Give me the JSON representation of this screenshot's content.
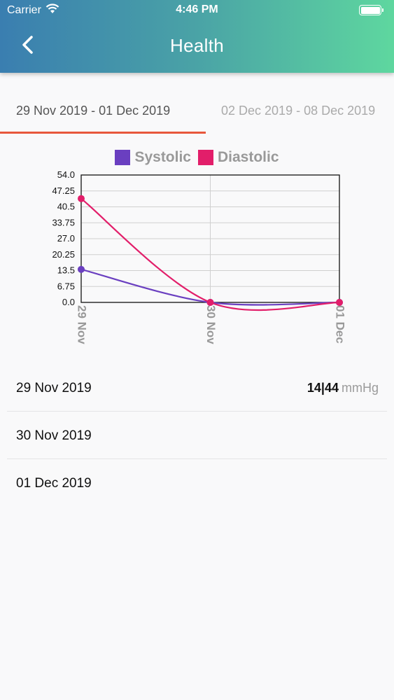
{
  "status_bar": {
    "carrier": "Carrier",
    "time": "4:46 PM"
  },
  "header": {
    "title": "Health",
    "back_icon": "chevron-left-icon"
  },
  "tabs": [
    {
      "label": "29 Nov 2019 - 01 Dec 2019",
      "active": true
    },
    {
      "label": "02 Dec 2019 - 08 Dec 2019",
      "active": false
    }
  ],
  "colors": {
    "accent": "#e8573c",
    "systolic": "#6a3fc0",
    "diastolic": "#e21e6a"
  },
  "chart_data": {
    "type": "line",
    "categories": [
      "29 Nov",
      "30 Nov",
      "01 Dec"
    ],
    "series": [
      {
        "name": "Systolic",
        "values": [
          14,
          0,
          0
        ]
      },
      {
        "name": "Diastolic",
        "values": [
          44,
          0,
          0
        ]
      }
    ],
    "ylim": [
      0,
      54
    ],
    "yticks": [
      "54.0",
      "47.25",
      "40.5",
      "33.75",
      "27.0",
      "20.25",
      "13.5",
      "6.75",
      "0.0"
    ],
    "grid": true,
    "legend": "top-center"
  },
  "readings": [
    {
      "date": "29 Nov 2019",
      "value": "14|44",
      "unit": "mmHg"
    },
    {
      "date": "30 Nov 2019",
      "value": "",
      "unit": ""
    },
    {
      "date": "01 Dec 2019",
      "value": "",
      "unit": ""
    }
  ]
}
